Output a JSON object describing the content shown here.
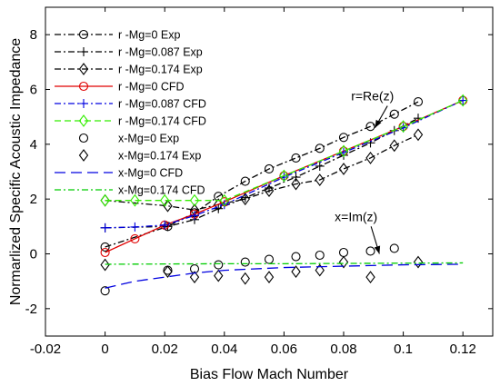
{
  "chart_data": {
    "type": "line",
    "xlabel": "Bias Flow Mach Number",
    "ylabel": "Normarlized Specific Acoustic Impedance",
    "xlim": [
      -0.02,
      0.13
    ],
    "ylim": [
      -3,
      9
    ],
    "xticks": [
      -0.02,
      0,
      0.02,
      0.04,
      0.06,
      0.08,
      0.1,
      0.12
    ],
    "yticks": [
      -2,
      0,
      2,
      4,
      6,
      8
    ],
    "grid": false,
    "legend_position": "top-left",
    "annotations": [
      {
        "text": "r=Re(z)",
        "x": 0.0825,
        "y": 5.6,
        "arrow_to_x": 0.0905,
        "arrow_to_y": 4.6
      },
      {
        "text": "x=Im(z)",
        "x": 0.077,
        "y": 1.2,
        "arrow_to_x": 0.092,
        "arrow_to_y": 0.0
      }
    ],
    "series": [
      {
        "name": "r -Mg=0 Exp",
        "color": "#000000",
        "dash": "dashdot",
        "marker": "circle",
        "x": [
          0,
          0.021,
          0.03,
          0.038,
          0.047,
          0.055,
          0.064,
          0.072,
          0.08,
          0.089,
          0.097,
          0.105
        ],
        "y": [
          0.25,
          1.0,
          1.5,
          2.1,
          2.65,
          3.1,
          3.5,
          3.85,
          4.25,
          4.65,
          5.1,
          5.55
        ]
      },
      {
        "name": "r -Mg=0.087 Exp",
        "color": "#000000",
        "dash": "dashdot",
        "marker": "plus",
        "x": [
          0,
          0.021,
          0.03,
          0.038,
          0.047,
          0.055,
          0.064,
          0.072,
          0.08,
          0.089,
          0.097,
          0.105
        ],
        "y": [
          0.95,
          1.0,
          1.25,
          1.65,
          2.05,
          2.4,
          2.8,
          3.2,
          3.6,
          4.05,
          4.5,
          4.95
        ]
      },
      {
        "name": "r -Mg=0.174 Exp",
        "color": "#000000",
        "dash": "dashdot",
        "marker": "diamond",
        "x": [
          0,
          0.021,
          0.03,
          0.038,
          0.047,
          0.055,
          0.064,
          0.072,
          0.08,
          0.089,
          0.097,
          0.105
        ],
        "y": [
          1.95,
          1.75,
          1.6,
          1.8,
          2.0,
          2.3,
          2.55,
          2.7,
          3.1,
          3.5,
          3.95,
          4.35
        ]
      },
      {
        "name": "r -Mg=0 CFD",
        "color": "#e00000",
        "dash": "solid",
        "marker": "circle",
        "x": [
          0,
          0.01,
          0.02,
          0.03,
          0.04,
          0.06,
          0.08,
          0.1,
          0.12
        ],
        "y": [
          0.05,
          0.55,
          1.05,
          1.45,
          1.9,
          2.85,
          3.75,
          4.65,
          5.6
        ]
      },
      {
        "name": "r -Mg=0.087 CFD",
        "color": "#0000e0",
        "dash": "dashdot",
        "marker": "plus",
        "x": [
          0,
          0.01,
          0.02,
          0.03,
          0.04,
          0.06,
          0.08,
          0.1,
          0.12
        ],
        "y": [
          0.95,
          0.98,
          1.05,
          1.4,
          1.8,
          2.8,
          3.7,
          4.6,
          5.6
        ]
      },
      {
        "name": "r -Mg=0.174 CFD",
        "color": "#33ee00",
        "dash": "dashed",
        "marker": "diamond",
        "x": [
          0,
          0.01,
          0.02,
          0.03,
          0.04,
          0.06,
          0.08,
          0.1,
          0.12
        ],
        "y": [
          1.95,
          1.95,
          1.95,
          1.95,
          1.95,
          2.85,
          3.75,
          4.65,
          5.6
        ]
      },
      {
        "name": "x-Mg=0 Exp",
        "color": "#000000",
        "dash": "none",
        "marker": "circle",
        "x": [
          0,
          0.021,
          0.03,
          0.038,
          0.047,
          0.055,
          0.064,
          0.072,
          0.08,
          0.089,
          0.097
        ],
        "y": [
          -1.35,
          -0.6,
          -0.55,
          -0.4,
          -0.3,
          -0.2,
          -0.1,
          -0.05,
          0.05,
          0.1,
          0.2
        ]
      },
      {
        "name": "x-Mg=0.174 Exp",
        "color": "#000000",
        "dash": "none",
        "marker": "diamond",
        "x": [
          0,
          0.021,
          0.03,
          0.038,
          0.047,
          0.055,
          0.064,
          0.072,
          0.08,
          0.089,
          0.105
        ],
        "y": [
          -0.4,
          -0.65,
          -0.85,
          -0.8,
          -0.9,
          -0.85,
          -0.65,
          -0.6,
          -0.3,
          -0.85,
          -0.3
        ]
      },
      {
        "name": "x-Mg=0 CFD",
        "color": "#0000e0",
        "dash": "longdash",
        "marker": "none",
        "x": [
          0,
          0.01,
          0.02,
          0.03,
          0.04,
          0.06,
          0.08,
          0.1,
          0.12
        ],
        "y": [
          -1.25,
          -1.0,
          -0.85,
          -0.7,
          -0.6,
          -0.5,
          -0.45,
          -0.4,
          -0.38
        ]
      },
      {
        "name": "x-Mg=0.174 CFD",
        "color": "#00cc00",
        "dash": "dashdot",
        "marker": "none",
        "x": [
          0,
          0.02,
          0.04,
          0.06,
          0.08,
          0.1,
          0.12
        ],
        "y": [
          -0.38,
          -0.37,
          -0.36,
          -0.36,
          -0.35,
          -0.34,
          -0.33
        ]
      }
    ]
  }
}
